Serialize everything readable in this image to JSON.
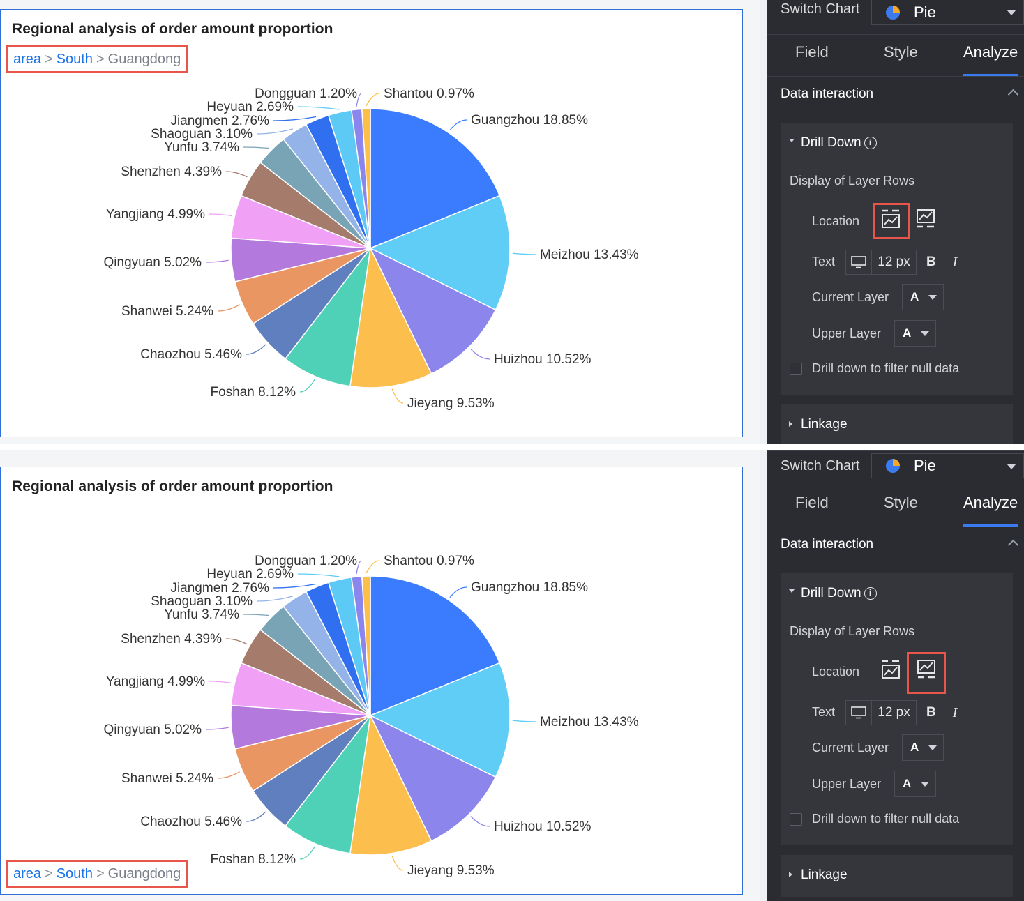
{
  "chart": {
    "title": "Regional analysis of order amount proportion",
    "breadcrumb": [
      {
        "label": "area",
        "link": true
      },
      {
        "label": "South",
        "link": true
      },
      {
        "label": "Guangdong",
        "link": false
      }
    ],
    "separator": ">"
  },
  "chart_data": {
    "type": "pie",
    "title": "Regional analysis of order amount proportion",
    "slices": [
      {
        "label": "Guangzhou",
        "value": 18.85,
        "text": "Guangzhou 18.85%",
        "color": "#3b7cff"
      },
      {
        "label": "Meizhou",
        "value": 13.43,
        "text": "Meizhou 13.43%",
        "color": "#5fcdf5"
      },
      {
        "label": "Huizhou",
        "value": 10.52,
        "text": "Huizhou 10.52%",
        "color": "#8c85ec"
      },
      {
        "label": "Jieyang",
        "value": 9.53,
        "text": "Jieyang 9.53%",
        "color": "#fcbe4c"
      },
      {
        "label": "Foshan",
        "value": 8.12,
        "text": "Foshan 8.12%",
        "color": "#4fd1b7"
      },
      {
        "label": "Chaozhou",
        "value": 5.46,
        "text": "Chaozhou 5.46%",
        "color": "#5f7fbf"
      },
      {
        "label": "Shanwei",
        "value": 5.24,
        "text": "Shanwei 5.24%",
        "color": "#ea9663"
      },
      {
        "label": "Qingyuan",
        "value": 5.02,
        "text": "Qingyuan 5.02%",
        "color": "#b479dc"
      },
      {
        "label": "Yangjiang",
        "value": 4.99,
        "text": "Yangjiang 4.99%",
        "color": "#f0a0f5"
      },
      {
        "label": "Shenzhen",
        "value": 4.39,
        "text": "Shenzhen 4.39%",
        "color": "#a57c6b"
      },
      {
        "label": "Yunfu",
        "value": 3.74,
        "text": "Yunfu 3.74%",
        "color": "#79a4b6"
      },
      {
        "label": "Shaoguan",
        "value": 3.1,
        "text": "Shaoguan 3.10%",
        "color": "#94b3e9"
      },
      {
        "label": "Jiangmen",
        "value": 2.76,
        "text": "Jiangmen 2.76%",
        "color": "#2f6ff0"
      },
      {
        "label": "Heyuan",
        "value": 2.69,
        "text": "Heyuan 2.69%",
        "color": "#5ccaf4"
      },
      {
        "label": "Dongguan",
        "value": 1.2,
        "text": "Dongguan 1.20%",
        "color": "#8a86ee"
      },
      {
        "label": "Shantou",
        "value": 0.97,
        "text": "Shantou 0.97%",
        "color": "#fcbf49"
      }
    ]
  },
  "panel": {
    "switch_label": "Switch Chart",
    "switch_value": "Pie",
    "tabs": [
      "Field",
      "Style",
      "Analyze"
    ],
    "active_tab": "Analyze",
    "section_title": "Data interaction",
    "drill_down": "Drill Down",
    "info_glyph": "i",
    "layer_rows": "Display of Layer Rows",
    "location_label": "Location",
    "text_label": "Text",
    "font_size": "12 px",
    "bold": "B",
    "italic": "I",
    "current_layer_label": "Current Layer",
    "current_layer_value": "A",
    "upper_layer_label": "Upper Layer",
    "upper_layer_value": "A",
    "null_filter": "Drill down to filter null data",
    "linkage": "Linkage"
  },
  "colors": {
    "accent": "#3b7bf0",
    "highlight": "#e8564b",
    "panel_bg": "#2a2c31"
  }
}
